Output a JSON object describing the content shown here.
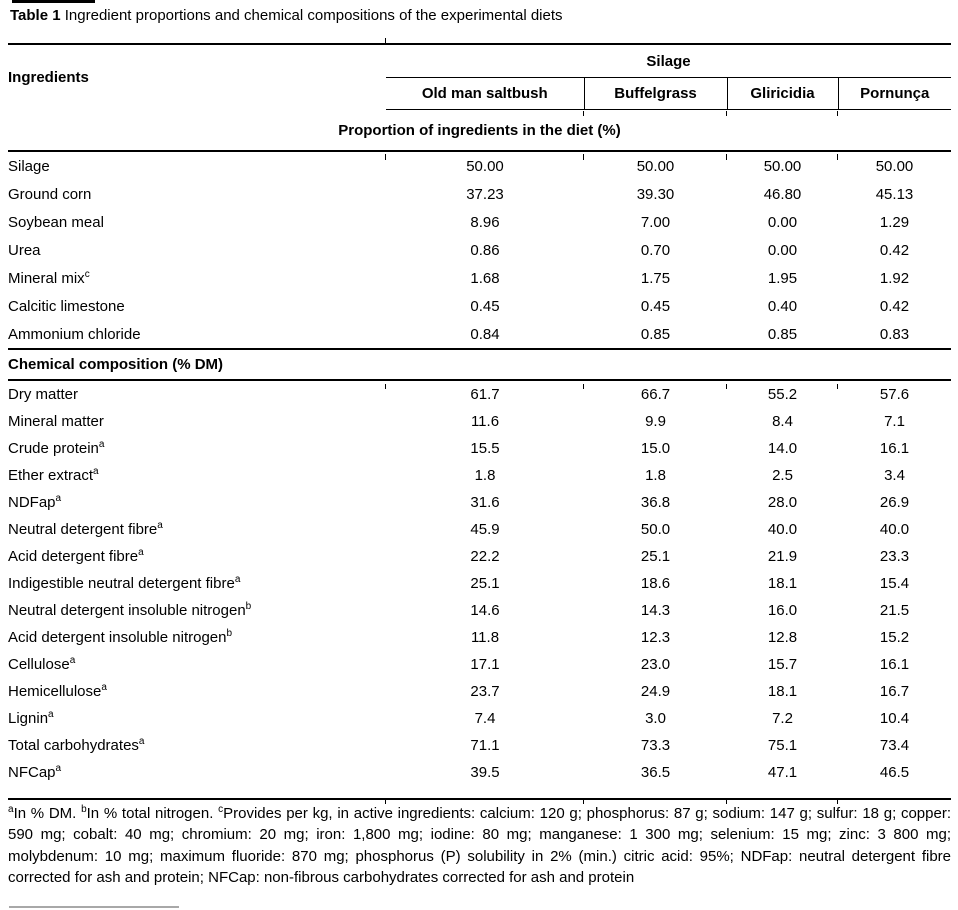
{
  "title": {
    "label": "Table 1",
    "text": "Ingredient proportions and chemical compositions of the experimental diets"
  },
  "table": {
    "stub_header": "Ingredients",
    "group_header": "Silage",
    "columns": [
      "Old man saltbush",
      "Buffelgrass",
      "Gliricidia",
      "Pornunça"
    ],
    "sections": [
      {
        "heading": "Proportion of ingredients in the diet (%)",
        "heading_align": "center",
        "rows": [
          {
            "label": "Silage",
            "sup": "",
            "values": [
              "50.00",
              "50.00",
              "50.00",
              "50.00"
            ]
          },
          {
            "label": "Ground corn",
            "sup": "",
            "values": [
              "37.23",
              "39.30",
              "46.80",
              "45.13"
            ]
          },
          {
            "label": "Soybean meal",
            "sup": "",
            "values": [
              "8.96",
              "7.00",
              "0.00",
              "1.29"
            ]
          },
          {
            "label": "Urea",
            "sup": "",
            "values": [
              "0.86",
              "0.70",
              "0.00",
              "0.42"
            ]
          },
          {
            "label": "Mineral mix",
            "sup": "c",
            "values": [
              "1.68",
              "1.75",
              "1.95",
              "1.92"
            ]
          },
          {
            "label": "Calcitic limestone",
            "sup": "",
            "values": [
              "0.45",
              "0.45",
              "0.40",
              "0.42"
            ]
          },
          {
            "label": "Ammonium chloride",
            "sup": "",
            "values": [
              "0.84",
              "0.85",
              "0.85",
              "0.83"
            ]
          }
        ]
      },
      {
        "heading": "Chemical composition (% DM)",
        "heading_align": "left",
        "rows": [
          {
            "label": "Dry matter",
            "sup": "",
            "values": [
              "61.7",
              "66.7",
              "55.2",
              "57.6"
            ]
          },
          {
            "label": "Mineral matter",
            "sup": "",
            "values": [
              "11.6",
              "9.9",
              "8.4",
              "7.1"
            ]
          },
          {
            "label": "Crude protein",
            "sup": "a",
            "values": [
              "15.5",
              "15.0",
              "14.0",
              "16.1"
            ]
          },
          {
            "label": "Ether extract",
            "sup": "a",
            "values": [
              "1.8",
              "1.8",
              "2.5",
              "3.4"
            ]
          },
          {
            "label": "NDFap",
            "sup": "a",
            "values": [
              "31.6",
              "36.8",
              "28.0",
              "26.9"
            ]
          },
          {
            "label": "Neutral detergent fibre",
            "sup": "a",
            "values": [
              "45.9",
              "50.0",
              "40.0",
              "40.0"
            ]
          },
          {
            "label": "Acid detergent fibre",
            "sup": "a",
            "values": [
              "22.2",
              "25.1",
              "21.9",
              "23.3"
            ]
          },
          {
            "label": "Indigestible neutral detergent fibre",
            "sup": "a",
            "values": [
              "25.1",
              "18.6",
              "18.1",
              "15.4"
            ]
          },
          {
            "label": "Neutral detergent insoluble nitrogen",
            "sup": "b",
            "values": [
              "14.6",
              "14.3",
              "16.0",
              "21.5"
            ]
          },
          {
            "label": "Acid detergent insoluble nitrogen",
            "sup": "b",
            "values": [
              "11.8",
              "12.3",
              "12.8",
              "15.2"
            ]
          },
          {
            "label": "Cellulose",
            "sup": "a",
            "values": [
              "17.1",
              "23.0",
              "15.7",
              "16.1"
            ]
          },
          {
            "label": "Hemicellulose",
            "sup": "a",
            "values": [
              "23.7",
              "24.9",
              "18.1",
              "16.7"
            ]
          },
          {
            "label": "Lignin",
            "sup": "a",
            "values": [
              "7.4",
              "3.0",
              "7.2",
              "10.4"
            ]
          },
          {
            "label": "Total carbohydrates",
            "sup": "a",
            "values": [
              "71.1",
              "73.3",
              "75.1",
              "73.4"
            ]
          },
          {
            "label": "NFCap",
            "sup": "a",
            "values": [
              "39.5",
              "36.5",
              "47.1",
              "46.5"
            ]
          }
        ]
      }
    ]
  },
  "footnote": {
    "parts": [
      {
        "sup": "a",
        "text": "In % DM. "
      },
      {
        "sup": "b",
        "text": "In % total nitrogen. "
      },
      {
        "sup": "c",
        "text": "Provides per kg, in active ingredients: calcium: 120 g; phosphorus: 87 g; sodium: 147 g; sulfur: 18 g; copper: 590 mg; cobalt: 40 mg; chromium: 20 mg; iron: 1,800 mg; iodine: 80 mg; manganese: 1 300 mg; selenium: 15 mg; zinc: 3 800 mg; molybdenum: 10 mg; maximum fluoride: 870 mg; phosphorus (P) solubility in 2% (min.) citric acid: 95%; NDFap: neutral detergent fibre corrected for ash and protein; NFCap: non-fibrous carbohydrates corrected for ash and protein"
      }
    ]
  },
  "colors": {
    "text": "#000000",
    "background": "#ffffff",
    "rule": "#000000"
  }
}
